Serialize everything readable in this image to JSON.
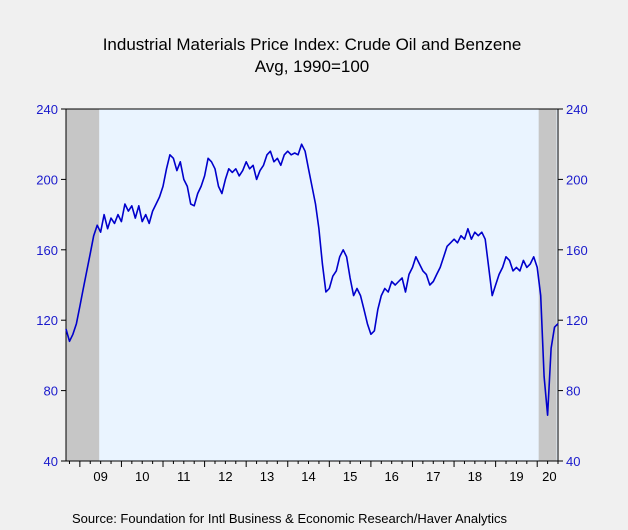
{
  "title_line1": "Industrial Materials Price Index: Crude Oil and Benzene",
  "title_line2": "Avg, 1990=100",
  "source": "Source:  Foundation for Intl Business & Economic Research/Haver Analytics",
  "chart_data": {
    "type": "line",
    "title": "Industrial Materials Price Index: Crude Oil and Benzene",
    "subtitle": "Avg, 1990=100",
    "ylim": [
      40,
      240
    ],
    "y_ticks": [
      40,
      80,
      120,
      160,
      200,
      240
    ],
    "x_ticks": [
      "09",
      "10",
      "11",
      "12",
      "13",
      "14",
      "15",
      "16",
      "17",
      "18",
      "19",
      "20"
    ],
    "xlim": [
      "2008-09",
      "2020-07"
    ],
    "recession_shading": [
      [
        "2008-09",
        "2009-06"
      ],
      [
        "2020-02",
        "2020-06"
      ]
    ],
    "series": [
      {
        "color": "#0000cc",
        "points": [
          [
            "2008-09",
            115
          ],
          [
            "2008-10",
            108
          ],
          [
            "2008-11",
            112
          ],
          [
            "2008-12",
            118
          ],
          [
            "2009-01",
            128
          ],
          [
            "2009-02",
            138
          ],
          [
            "2009-03",
            148
          ],
          [
            "2009-04",
            158
          ],
          [
            "2009-05",
            168
          ],
          [
            "2009-06",
            174
          ],
          [
            "2009-07",
            170
          ],
          [
            "2009-08",
            180
          ],
          [
            "2009-09",
            172
          ],
          [
            "2009-10",
            178
          ],
          [
            "2009-11",
            175
          ],
          [
            "2009-12",
            180
          ],
          [
            "2010-01",
            176
          ],
          [
            "2010-02",
            186
          ],
          [
            "2010-03",
            182
          ],
          [
            "2010-04",
            185
          ],
          [
            "2010-05",
            178
          ],
          [
            "2010-06",
            185
          ],
          [
            "2010-07",
            176
          ],
          [
            "2010-08",
            180
          ],
          [
            "2010-09",
            175
          ],
          [
            "2010-10",
            182
          ],
          [
            "2010-11",
            186
          ],
          [
            "2010-12",
            190
          ],
          [
            "2011-01",
            196
          ],
          [
            "2011-02",
            206
          ],
          [
            "2011-03",
            214
          ],
          [
            "2011-04",
            212
          ],
          [
            "2011-05",
            205
          ],
          [
            "2011-06",
            210
          ],
          [
            "2011-07",
            200
          ],
          [
            "2011-08",
            196
          ],
          [
            "2011-09",
            186
          ],
          [
            "2011-10",
            185
          ],
          [
            "2011-11",
            192
          ],
          [
            "2011-12",
            196
          ],
          [
            "2012-01",
            202
          ],
          [
            "2012-02",
            212
          ],
          [
            "2012-03",
            210
          ],
          [
            "2012-04",
            206
          ],
          [
            "2012-05",
            196
          ],
          [
            "2012-06",
            192
          ],
          [
            "2012-07",
            200
          ],
          [
            "2012-08",
            206
          ],
          [
            "2012-09",
            204
          ],
          [
            "2012-10",
            206
          ],
          [
            "2012-11",
            202
          ],
          [
            "2012-12",
            205
          ],
          [
            "2013-01",
            210
          ],
          [
            "2013-02",
            206
          ],
          [
            "2013-03",
            208
          ],
          [
            "2013-04",
            200
          ],
          [
            "2013-05",
            205
          ],
          [
            "2013-06",
            208
          ],
          [
            "2013-07",
            214
          ],
          [
            "2013-08",
            216
          ],
          [
            "2013-09",
            210
          ],
          [
            "2013-10",
            212
          ],
          [
            "2013-11",
            208
          ],
          [
            "2013-12",
            214
          ],
          [
            "2014-01",
            216
          ],
          [
            "2014-02",
            214
          ],
          [
            "2014-03",
            215
          ],
          [
            "2014-04",
            214
          ],
          [
            "2014-05",
            220
          ],
          [
            "2014-06",
            216
          ],
          [
            "2014-07",
            206
          ],
          [
            "2014-08",
            196
          ],
          [
            "2014-09",
            186
          ],
          [
            "2014-10",
            172
          ],
          [
            "2014-11",
            152
          ],
          [
            "2014-12",
            136
          ],
          [
            "2015-01",
            138
          ],
          [
            "2015-02",
            145
          ],
          [
            "2015-03",
            148
          ],
          [
            "2015-04",
            156
          ],
          [
            "2015-05",
            160
          ],
          [
            "2015-06",
            156
          ],
          [
            "2015-07",
            144
          ],
          [
            "2015-08",
            134
          ],
          [
            "2015-09",
            138
          ],
          [
            "2015-10",
            134
          ],
          [
            "2015-11",
            126
          ],
          [
            "2015-12",
            118
          ],
          [
            "2016-01",
            112
          ],
          [
            "2016-02",
            114
          ],
          [
            "2016-03",
            126
          ],
          [
            "2016-04",
            134
          ],
          [
            "2016-05",
            138
          ],
          [
            "2016-06",
            136
          ],
          [
            "2016-07",
            142
          ],
          [
            "2016-08",
            140
          ],
          [
            "2016-09",
            142
          ],
          [
            "2016-10",
            144
          ],
          [
            "2016-11",
            136
          ],
          [
            "2016-12",
            146
          ],
          [
            "2017-01",
            150
          ],
          [
            "2017-02",
            156
          ],
          [
            "2017-03",
            152
          ],
          [
            "2017-04",
            148
          ],
          [
            "2017-05",
            146
          ],
          [
            "2017-06",
            140
          ],
          [
            "2017-07",
            142
          ],
          [
            "2017-08",
            146
          ],
          [
            "2017-09",
            150
          ],
          [
            "2017-10",
            156
          ],
          [
            "2017-11",
            162
          ],
          [
            "2017-12",
            164
          ],
          [
            "2018-01",
            166
          ],
          [
            "2018-02",
            164
          ],
          [
            "2018-03",
            168
          ],
          [
            "2018-04",
            166
          ],
          [
            "2018-05",
            172
          ],
          [
            "2018-06",
            166
          ],
          [
            "2018-07",
            170
          ],
          [
            "2018-08",
            168
          ],
          [
            "2018-09",
            170
          ],
          [
            "2018-10",
            166
          ],
          [
            "2018-11",
            150
          ],
          [
            "2018-12",
            134
          ],
          [
            "2019-01",
            140
          ],
          [
            "2019-02",
            146
          ],
          [
            "2019-03",
            150
          ],
          [
            "2019-04",
            156
          ],
          [
            "2019-05",
            154
          ],
          [
            "2019-06",
            148
          ],
          [
            "2019-07",
            150
          ],
          [
            "2019-08",
            148
          ],
          [
            "2019-09",
            154
          ],
          [
            "2019-10",
            150
          ],
          [
            "2019-11",
            152
          ],
          [
            "2019-12",
            156
          ],
          [
            "2020-01",
            150
          ],
          [
            "2020-02",
            134
          ],
          [
            "2020-03",
            88
          ],
          [
            "2020-04",
            66
          ],
          [
            "2020-05",
            104
          ],
          [
            "2020-06",
            116
          ],
          [
            "2020-07",
            118
          ]
        ]
      }
    ]
  }
}
